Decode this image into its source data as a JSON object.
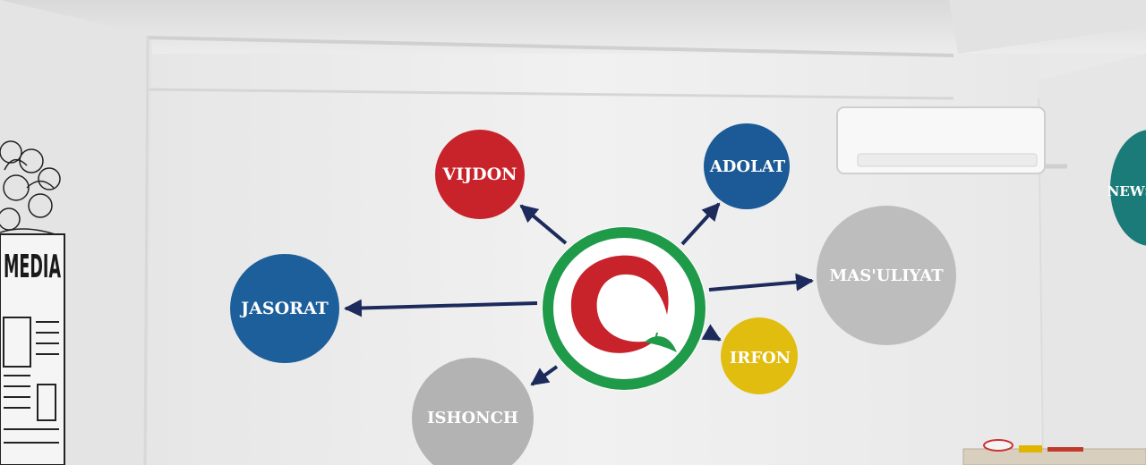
{
  "mural": {
    "left_wall_word": "MEDIA",
    "right_wall_word": "NEWS",
    "circles": [
      {
        "label": "VIJDON",
        "color": "#c8232b"
      },
      {
        "label": "ADOLAT",
        "color": "#1b5a96"
      },
      {
        "label": "MAS'ULIYAT",
        "color": "#bdbdbd"
      },
      {
        "label": "IRFON",
        "color": "#e1bd10"
      },
      {
        "label": "ISHONCH",
        "color": "#b3b3b3"
      },
      {
        "label": "JASORAT",
        "color": "#1c5f9b"
      }
    ],
    "center_logo": {
      "ring_color": "#1f9a48",
      "swirl_color": "#c8232b",
      "leaf_color": "#1f9a48"
    },
    "arrow_color": "#1c2a5c",
    "right_wall_circle_color": "#1a7b79"
  }
}
